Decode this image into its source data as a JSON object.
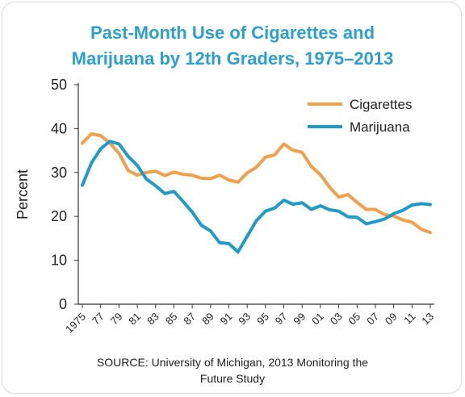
{
  "title_line1": "Past-Month Use of Cigarettes and",
  "title_line2": "Marijuana by 12th Graders, 1975–2013",
  "source_line1": "SOURCE: University of Michigan, 2013 Monitoring the",
  "source_line2": "Future Study",
  "chart_data": {
    "type": "line",
    "title": "Past-Month Use of Cigarettes and Marijuana by 12th Graders, 1975–2013",
    "xlabel": "",
    "ylabel": "Percent",
    "ylim": [
      0,
      50
    ],
    "yticks": [
      0,
      10,
      20,
      30,
      40,
      50
    ],
    "grid": false,
    "legend": "top-right",
    "x": [
      1975,
      1976,
      1977,
      1978,
      1979,
      1980,
      1981,
      1982,
      1983,
      1984,
      1985,
      1986,
      1987,
      1988,
      1989,
      1990,
      1991,
      1992,
      1993,
      1994,
      1995,
      1996,
      1997,
      1998,
      1999,
      2000,
      2001,
      2002,
      2003,
      2004,
      2005,
      2006,
      2007,
      2008,
      2009,
      2010,
      2011,
      2012,
      2013
    ],
    "xtick_labels": [
      "1975",
      "77",
      "79",
      "81",
      "83",
      "85",
      "87",
      "89",
      "91",
      "93",
      "95",
      "97",
      "99",
      "01",
      "03",
      "05",
      "07",
      "09",
      "11",
      "13"
    ],
    "series": [
      {
        "name": "Cigarettes",
        "color": "#f0a049",
        "values": [
          36.7,
          38.8,
          38.4,
          36.7,
          34.4,
          30.5,
          29.4,
          30.0,
          30.3,
          29.3,
          30.1,
          29.6,
          29.4,
          28.7,
          28.6,
          29.4,
          28.3,
          27.8,
          29.9,
          31.2,
          33.5,
          34.0,
          36.5,
          35.1,
          34.6,
          31.4,
          29.5,
          26.7,
          24.4,
          25.0,
          23.2,
          21.6,
          21.6,
          20.4,
          20.1,
          19.2,
          18.7,
          17.1,
          16.3
        ]
      },
      {
        "name": "Marijuana",
        "color": "#1f9bc8",
        "values": [
          27.1,
          32.2,
          35.4,
          37.1,
          36.5,
          33.7,
          31.6,
          28.5,
          27.0,
          25.2,
          25.7,
          23.4,
          21.0,
          18.0,
          16.7,
          14.0,
          13.8,
          11.9,
          15.5,
          19.0,
          21.2,
          21.9,
          23.7,
          22.8,
          23.1,
          21.6,
          22.4,
          21.5,
          21.2,
          19.9,
          19.8,
          18.3,
          18.8,
          19.4,
          20.6,
          21.4,
          22.6,
          22.9,
          22.7
        ]
      }
    ]
  }
}
